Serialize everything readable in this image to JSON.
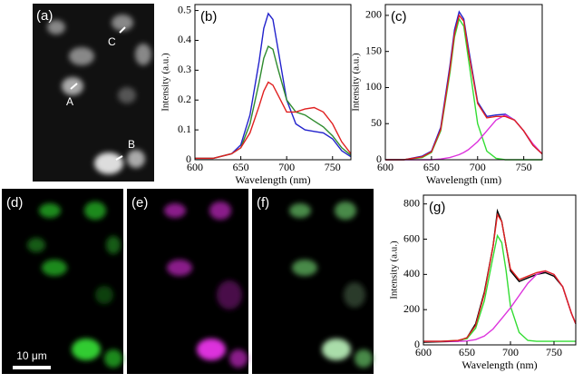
{
  "images": {
    "a": {
      "label": "(a)",
      "markers": [
        "A",
        "B",
        "C"
      ]
    },
    "d": {
      "label": "(d)",
      "scale_bar": "10 μm"
    },
    "e": {
      "label": "(e)"
    },
    "f": {
      "label": "(f)"
    }
  },
  "chart_data": [
    {
      "type": "line",
      "title": "(b)",
      "xlabel": "Wavelength (nm)",
      "ylabel": "Intensity (a.u.)",
      "x": [
        600,
        620,
        640,
        650,
        660,
        670,
        675,
        680,
        685,
        690,
        700,
        710,
        720,
        730,
        740,
        750,
        760,
        770
      ],
      "series": [
        {
          "color": "#2222cc",
          "values": [
            0.005,
            0.005,
            0.02,
            0.05,
            0.15,
            0.33,
            0.44,
            0.49,
            0.47,
            0.38,
            0.2,
            0.12,
            0.1,
            0.095,
            0.09,
            0.07,
            0.03,
            0.01
          ]
        },
        {
          "color": "#2e8b2e",
          "values": [
            0.005,
            0.005,
            0.02,
            0.04,
            0.12,
            0.26,
            0.34,
            0.38,
            0.37,
            0.31,
            0.2,
            0.16,
            0.15,
            0.13,
            0.11,
            0.08,
            0.04,
            0.015
          ]
        },
        {
          "color": "#e02020",
          "values": [
            0.005,
            0.005,
            0.02,
            0.04,
            0.09,
            0.18,
            0.23,
            0.26,
            0.25,
            0.22,
            0.16,
            0.16,
            0.17,
            0.175,
            0.16,
            0.12,
            0.06,
            0.02
          ]
        }
      ],
      "xlim": [
        600,
        770
      ],
      "xticks": [
        600,
        650,
        700,
        750
      ],
      "ylim": [
        0,
        0.52
      ],
      "yticks": [
        0,
        0.1,
        0.2,
        0.3,
        0.4,
        0.5
      ]
    },
    {
      "type": "line",
      "title": "(c)",
      "xlabel": "Wavelength (nm)",
      "ylabel": "Intensity (a.u.)",
      "x": [
        600,
        620,
        640,
        650,
        660,
        670,
        675,
        680,
        685,
        690,
        700,
        710,
        720,
        730,
        740,
        750,
        760,
        770
      ],
      "series": [
        {
          "color": "#2222cc",
          "values": [
            0,
            0,
            5,
            12,
            45,
            130,
            180,
            205,
            195,
            155,
            80,
            60,
            62,
            63,
            55,
            40,
            20,
            8
          ]
        },
        {
          "color": "#33dd33",
          "values": [
            0,
            0,
            3,
            10,
            40,
            120,
            170,
            195,
            185,
            140,
            50,
            12,
            2,
            0,
            0,
            0,
            0,
            0
          ]
        },
        {
          "color": "#dd33dd",
          "values": [
            0,
            0,
            0,
            0,
            1,
            3,
            5,
            7,
            10,
            14,
            25,
            40,
            55,
            62,
            55,
            40,
            22,
            8
          ]
        },
        {
          "color": "#e02020",
          "values": [
            0,
            0,
            4,
            11,
            42,
            125,
            175,
            200,
            192,
            150,
            78,
            58,
            60,
            60,
            55,
            40,
            20,
            8
          ]
        }
      ],
      "xlim": [
        600,
        770
      ],
      "xticks": [
        600,
        650,
        700,
        750
      ],
      "ylim": [
        0,
        215
      ],
      "yticks": [
        0,
        50,
        100,
        150,
        200
      ]
    },
    {
      "type": "line",
      "title": "(g)",
      "xlabel": "Wavelength (nm)",
      "ylabel": "Intensity (a.u.)",
      "x": [
        600,
        620,
        640,
        650,
        660,
        670,
        680,
        685,
        690,
        695,
        700,
        710,
        720,
        730,
        740,
        750,
        760,
        770,
        775
      ],
      "series": [
        {
          "color": "#000000",
          "values": [
            15,
            18,
            20,
            40,
            120,
            300,
            560,
            760,
            700,
            560,
            420,
            360,
            380,
            400,
            410,
            390,
            330,
            180,
            120
          ]
        },
        {
          "color": "#33dd33",
          "values": [
            20,
            20,
            25,
            35,
            95,
            250,
            500,
            620,
            580,
            420,
            220,
            70,
            25,
            20,
            20,
            20,
            20,
            20,
            20
          ]
        },
        {
          "color": "#dd33dd",
          "values": [
            20,
            20,
            20,
            22,
            30,
            50,
            90,
            120,
            150,
            180,
            210,
            280,
            350,
            400,
            420,
            400,
            330,
            180,
            120
          ]
        },
        {
          "color": "#e02020",
          "values": [
            20,
            20,
            25,
            40,
            110,
            290,
            560,
            740,
            700,
            560,
            430,
            370,
            390,
            410,
            420,
            400,
            330,
            180,
            120
          ]
        }
      ],
      "xlim": [
        600,
        775
      ],
      "xticks": [
        600,
        650,
        700,
        750
      ],
      "ylim": [
        0,
        850
      ],
      "yticks": [
        0,
        200,
        400,
        600,
        800
      ]
    }
  ]
}
